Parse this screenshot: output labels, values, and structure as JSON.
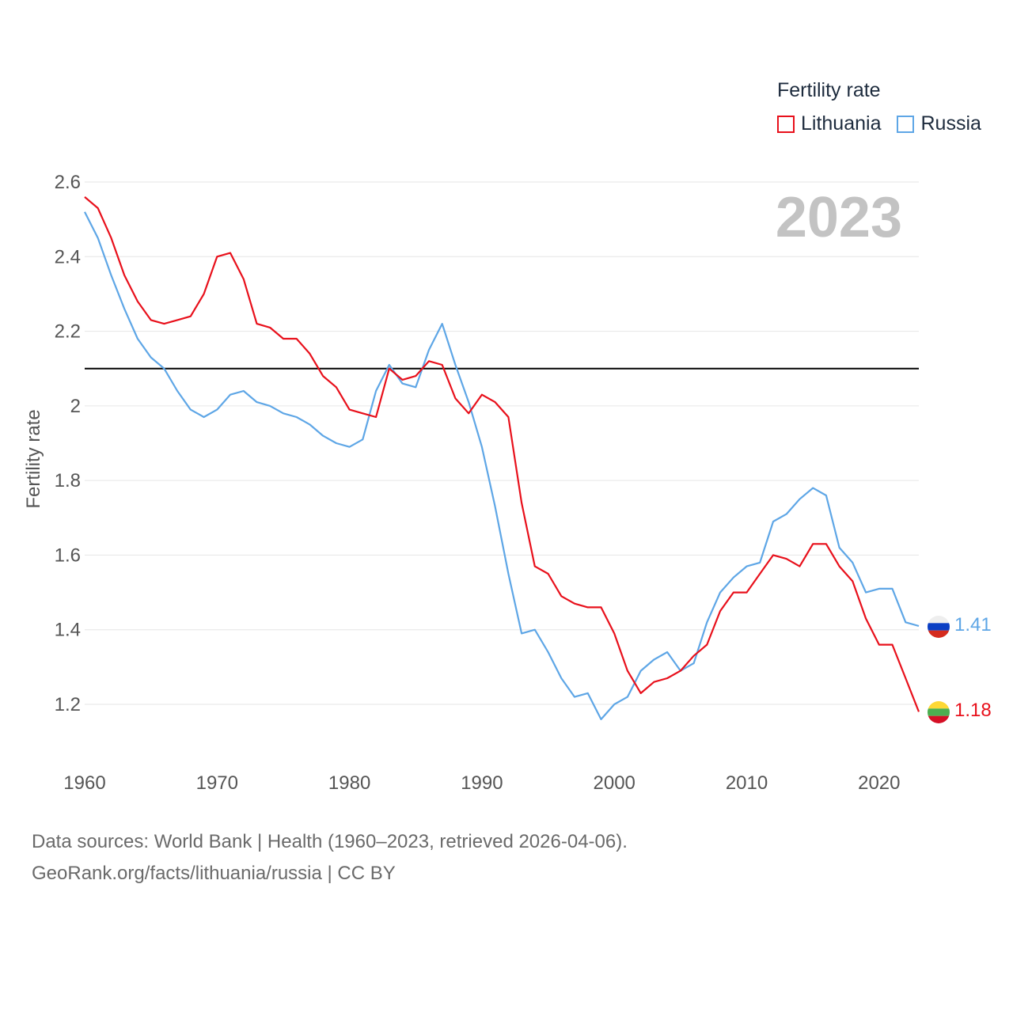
{
  "legend": {
    "title": "Fertility rate",
    "items": [
      {
        "label": "Lithuania",
        "color": "#e8101b"
      },
      {
        "label": "Russia",
        "color": "#5ea6e6"
      }
    ]
  },
  "source": {
    "line1": "Data sources: World Bank | Health (1960–2023, retrieved 2026-04-06).",
    "line2": "GeoRank.org/facts/lithuania/russia | CC BY"
  },
  "chart_data": {
    "type": "line",
    "title": "Fertility rate",
    "year_label": "2023",
    "ylabel": "Fertility rate",
    "xlabel": "",
    "xlim": [
      1960,
      2023
    ],
    "ylim": [
      1.1,
      2.6
    ],
    "x_ticks": [
      1960,
      1970,
      1980,
      1990,
      2000,
      2010,
      2020
    ],
    "y_ticks": [
      1.2,
      1.4,
      1.6,
      1.8,
      2,
      2.2,
      2.4,
      2.6
    ],
    "reference_line": 2.1,
    "x": [
      1960,
      1961,
      1962,
      1963,
      1964,
      1965,
      1966,
      1967,
      1968,
      1969,
      1970,
      1971,
      1972,
      1973,
      1974,
      1975,
      1976,
      1977,
      1978,
      1979,
      1980,
      1981,
      1982,
      1983,
      1984,
      1985,
      1986,
      1987,
      1988,
      1989,
      1990,
      1991,
      1992,
      1993,
      1994,
      1995,
      1996,
      1997,
      1998,
      1999,
      2000,
      2001,
      2002,
      2003,
      2004,
      2005,
      2006,
      2007,
      2008,
      2009,
      2010,
      2011,
      2012,
      2013,
      2014,
      2015,
      2016,
      2017,
      2018,
      2019,
      2020,
      2021,
      2022,
      2023
    ],
    "series": [
      {
        "name": "Lithuania",
        "color": "#e8101b",
        "end_label": "1.18",
        "flag": "lithuania-flag",
        "values": [
          2.56,
          2.53,
          2.45,
          2.35,
          2.28,
          2.23,
          2.22,
          2.23,
          2.24,
          2.3,
          2.4,
          2.41,
          2.34,
          2.22,
          2.21,
          2.18,
          2.18,
          2.14,
          2.08,
          2.05,
          1.99,
          1.98,
          1.97,
          2.1,
          2.07,
          2.08,
          2.12,
          2.11,
          2.02,
          1.98,
          2.03,
          2.01,
          1.97,
          1.74,
          1.57,
          1.55,
          1.49,
          1.47,
          1.46,
          1.46,
          1.39,
          1.29,
          1.23,
          1.26,
          1.27,
          1.29,
          1.33,
          1.36,
          1.45,
          1.5,
          1.5,
          1.55,
          1.6,
          1.59,
          1.57,
          1.63,
          1.63,
          1.57,
          1.53,
          1.43,
          1.36,
          1.36,
          1.27,
          1.18
        ]
      },
      {
        "name": "Russia",
        "color": "#5ea6e6",
        "end_label": "1.41",
        "flag": "russia-flag",
        "values": [
          2.52,
          2.45,
          2.35,
          2.26,
          2.18,
          2.13,
          2.1,
          2.04,
          1.99,
          1.97,
          1.99,
          2.03,
          2.04,
          2.01,
          2.0,
          1.98,
          1.97,
          1.95,
          1.92,
          1.9,
          1.89,
          1.91,
          2.04,
          2.11,
          2.06,
          2.05,
          2.15,
          2.22,
          2.11,
          2.01,
          1.89,
          1.73,
          1.55,
          1.39,
          1.4,
          1.34,
          1.27,
          1.22,
          1.23,
          1.16,
          1.2,
          1.22,
          1.29,
          1.32,
          1.34,
          1.29,
          1.31,
          1.42,
          1.5,
          1.54,
          1.57,
          1.58,
          1.69,
          1.71,
          1.75,
          1.78,
          1.76,
          1.62,
          1.58,
          1.5,
          1.51,
          1.51,
          1.42,
          1.41
        ]
      }
    ]
  }
}
